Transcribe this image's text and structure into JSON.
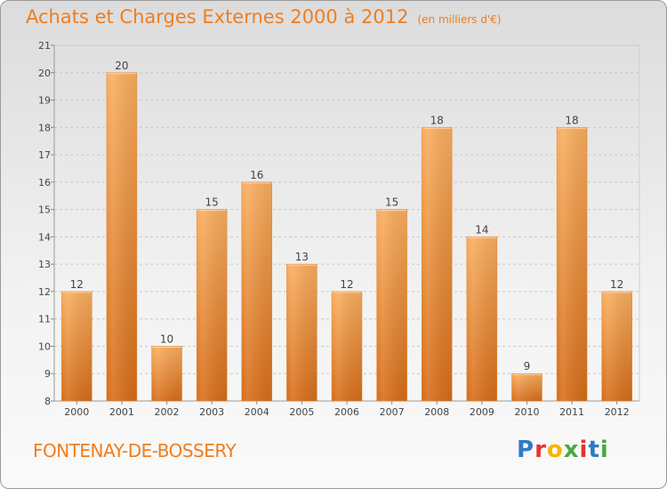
{
  "title": "Achats et Charges Externes 2000 à 2012",
  "subtitle": "(en milliers d'€)",
  "place": "FONTENAY-DE-BOSSERY",
  "brand": [
    "P",
    "r",
    "o",
    "x",
    "i",
    "t",
    "i"
  ],
  "colors": {
    "bar_top": "#f7a858",
    "bar_bottom": "#d96e1a",
    "accent": "#f07d1e"
  },
  "chart_data": {
    "type": "bar",
    "categories": [
      "2000",
      "2001",
      "2002",
      "2003",
      "2004",
      "2005",
      "2006",
      "2007",
      "2008",
      "2009",
      "2010",
      "2011",
      "2012"
    ],
    "values": [
      12,
      20,
      10,
      15,
      16,
      13,
      12,
      15,
      18,
      14,
      9,
      18,
      12
    ],
    "ylim": [
      8,
      21
    ],
    "yticks": [
      8,
      9,
      10,
      11,
      12,
      13,
      14,
      15,
      16,
      17,
      18,
      19,
      20,
      21
    ],
    "grid": "horizontal dashed",
    "title": "Achats et Charges Externes 2000 à 2012",
    "xlabel": "",
    "ylabel": ""
  }
}
